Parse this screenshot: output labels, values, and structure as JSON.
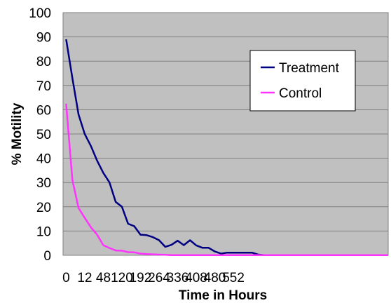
{
  "chart_data": {
    "type": "line",
    "xlabel": "Time in Hours",
    "ylabel": "% Motility",
    "ylim": [
      0,
      100
    ],
    "yticks": [
      0,
      10,
      20,
      30,
      40,
      50,
      60,
      70,
      80,
      90,
      100
    ],
    "xlim": [
      -6,
      624
    ],
    "xtick_labels": [
      "0",
      "12",
      "48",
      "120",
      "192",
      "264",
      "336",
      "408",
      "480",
      "552"
    ],
    "grid": true,
    "plot_background": "#c0c0c0",
    "legend_position": "top-right",
    "series": [
      {
        "name": "Treatment",
        "color": "#000080",
        "x": [
          0,
          12,
          24,
          36,
          48,
          60,
          72,
          84,
          96,
          108,
          120,
          132,
          144,
          156,
          168,
          180,
          192,
          204,
          216,
          228,
          240,
          252,
          264,
          276,
          288,
          300,
          312,
          324,
          336,
          348,
          360,
          372,
          384,
          396,
          408,
          420,
          432,
          444,
          456,
          468,
          480,
          492,
          504,
          516,
          528,
          540,
          552,
          564,
          576,
          588,
          600,
          612,
          624
        ],
        "values": [
          89,
          73,
          58,
          50,
          45,
          39,
          34,
          30,
          22,
          20,
          13,
          12,
          8.5,
          8.3,
          7.5,
          6.2,
          3.5,
          4.3,
          6,
          4.2,
          6.2,
          4.1,
          3.1,
          3.1,
          1.6,
          0.7,
          1.1,
          1.1,
          1.1,
          1.1,
          1.1,
          0.3,
          0.1,
          0.1,
          0.1,
          0.1,
          0.1,
          0.1,
          0.1,
          0.1,
          0.1,
          0.1,
          0.1,
          0.1,
          0.1,
          0.1,
          0.1,
          0.1,
          0.1,
          0.1,
          0.1,
          0.1,
          0.1
        ]
      },
      {
        "name": "Control",
        "color": "#ff33ff",
        "x": [
          0,
          12,
          24,
          36,
          48,
          60,
          72,
          84,
          96,
          108,
          120,
          132,
          144,
          156,
          168,
          180,
          192,
          204,
          216,
          228,
          240,
          252,
          264,
          276,
          288,
          300,
          312,
          324,
          336,
          348,
          360,
          372,
          384,
          396,
          408,
          420,
          432,
          444,
          456,
          468,
          480,
          492,
          504,
          516,
          528,
          540,
          552,
          564,
          576,
          588,
          600,
          612,
          624
        ],
        "values": [
          62.5,
          31,
          19.5,
          15.5,
          11.5,
          8.5,
          4.2,
          3,
          2,
          1.9,
          1.3,
          1.2,
          0.7,
          0.5,
          0.4,
          0.3,
          0.2,
          0.1,
          0.1,
          0.1,
          0.1,
          0.1,
          0.1,
          0.1,
          0.1,
          0.1,
          0.1,
          0.1,
          0.1,
          0.1,
          0.1,
          0.1,
          0.1,
          0.1,
          0.1,
          0.1,
          0.1,
          0.1,
          0.1,
          0.1,
          0.1,
          0.1,
          0.1,
          0.1,
          0.1,
          0.1,
          0.1,
          0.1,
          0.1,
          0.1,
          0.1,
          0.1,
          0.1
        ]
      }
    ]
  }
}
